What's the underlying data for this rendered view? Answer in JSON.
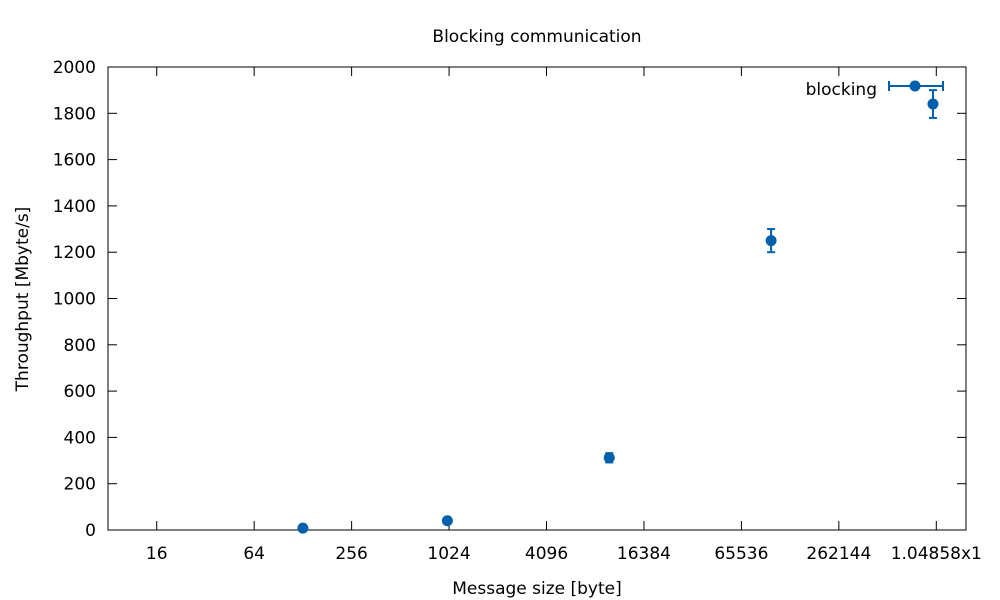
{
  "chart_data": {
    "type": "scatter",
    "title": "Blocking communication",
    "xlabel": "Message size [byte]",
    "ylabel": "Throughput [Mbyte/s]",
    "x_scale": "log2",
    "xlim": [
      8,
      1600000
    ],
    "ylim": [
      0,
      2000
    ],
    "x_ticks": [
      {
        "value": 16,
        "label": "16"
      },
      {
        "value": 64,
        "label": "64"
      },
      {
        "value": 256,
        "label": "256"
      },
      {
        "value": 1024,
        "label": "1024"
      },
      {
        "value": 4096,
        "label": "4096"
      },
      {
        "value": 16384,
        "label": "16384"
      },
      {
        "value": 65536,
        "label": "65536"
      },
      {
        "value": 262144,
        "label": "262144"
      },
      {
        "value": 1048576,
        "label": "1.04858x1"
      }
    ],
    "y_ticks": [
      0,
      200,
      400,
      600,
      800,
      1000,
      1200,
      1400,
      1600,
      1800,
      2000
    ],
    "grid": false,
    "legend_position": "top-right",
    "series": [
      {
        "name": "blocking",
        "color": "#0060ad",
        "points": [
          {
            "x": 128,
            "y": 8,
            "y_err": 0
          },
          {
            "x": 1000,
            "y": 40,
            "y_err": 0
          },
          {
            "x": 10000,
            "y": 312,
            "y_err": 20
          },
          {
            "x": 100000,
            "y": 1250,
            "y_err": 50
          },
          {
            "x": 1000000,
            "y": 1840,
            "y_err": 60
          }
        ]
      }
    ]
  }
}
